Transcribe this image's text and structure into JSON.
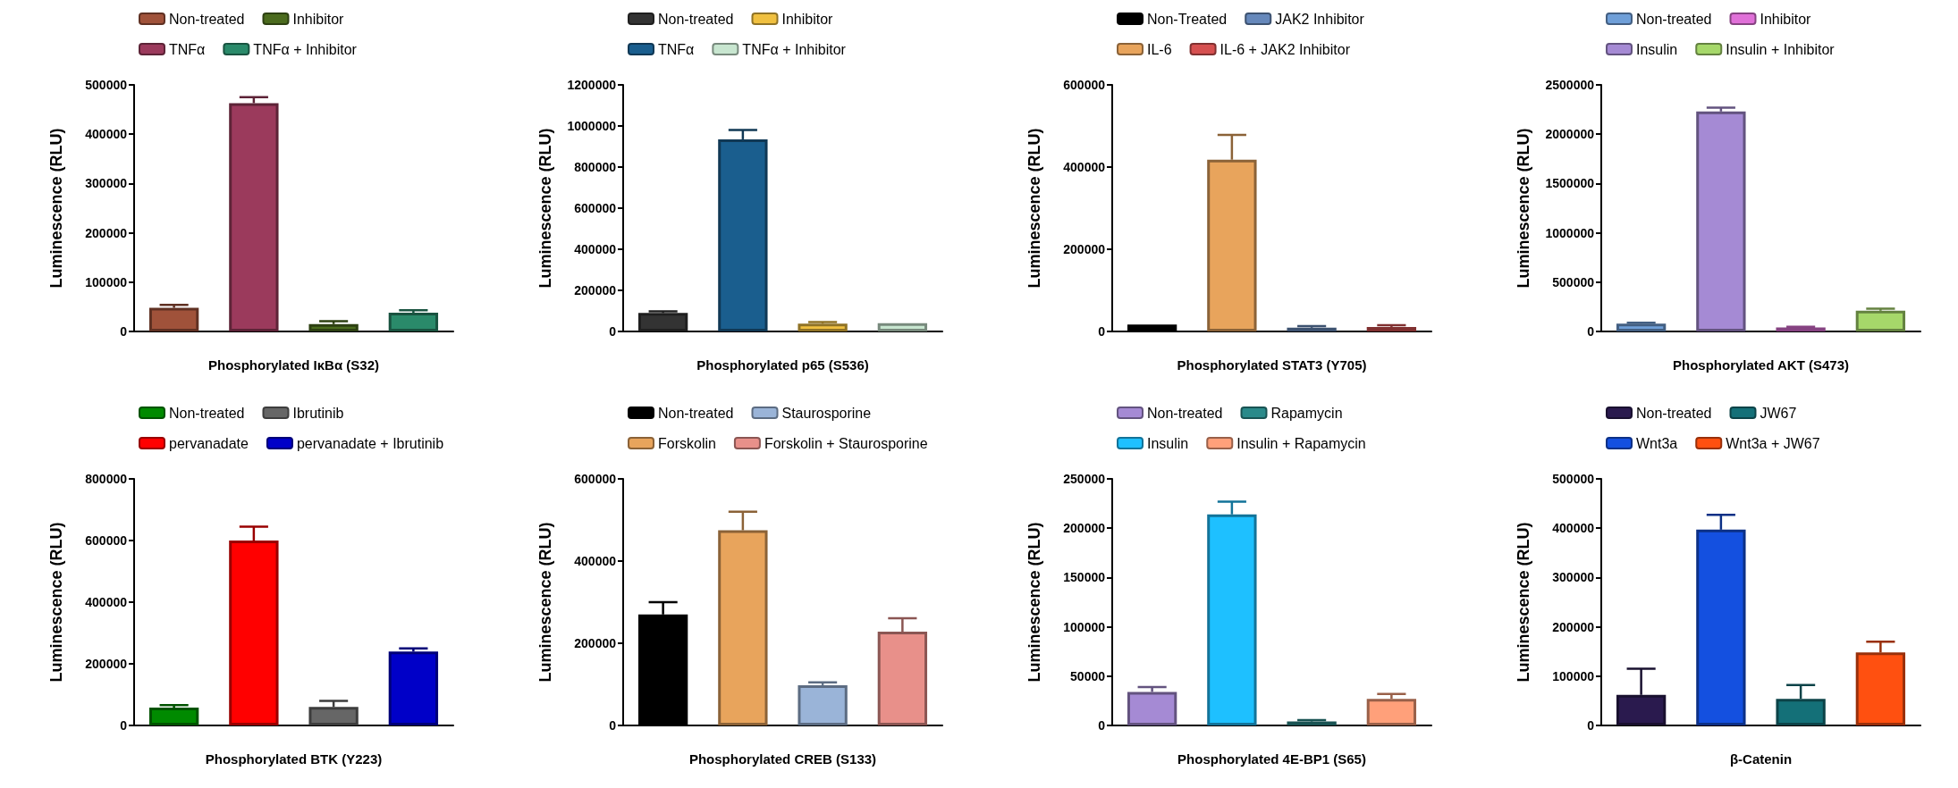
{
  "chart_data": [
    {
      "type": "bar",
      "xlabel": "Phosphorylated IκBα (S32)",
      "ylabel": "Luminescence (RLU)",
      "categories": [
        null,
        null,
        null,
        null
      ],
      "ylim": [
        0,
        500000
      ],
      "yticks": [
        0,
        100000,
        200000,
        300000,
        400000,
        500000
      ],
      "legend": "top",
      "grid": false,
      "series": [
        {
          "name": "Non-treated",
          "color": "#a0523a",
          "values": [
            48000,
            null,
            null,
            null
          ],
          "errors": [
            6000,
            null,
            null,
            null
          ]
        },
        {
          "name": "TNFα",
          "color": "#9b3a5c",
          "values": [
            null,
            463000,
            null,
            null
          ],
          "errors": [
            null,
            12000,
            null,
            null
          ]
        },
        {
          "name": "Inhibitor",
          "color": "#4b6b1e",
          "values": [
            null,
            null,
            15000,
            null
          ],
          "errors": [
            null,
            null,
            6000,
            null
          ]
        },
        {
          "name": "TNFα + Inhibitor",
          "color": "#2a8a6a",
          "values": [
            null,
            null,
            null,
            38000
          ],
          "errors": [
            null,
            null,
            null,
            5000
          ]
        }
      ]
    },
    {
      "type": "bar",
      "xlabel": "Phosphorylated p65 (S536)",
      "ylabel": "Luminescence (RLU)",
      "categories": [
        null,
        null,
        null,
        null
      ],
      "ylim": [
        0,
        1200000
      ],
      "yticks": [
        0,
        200000,
        400000,
        600000,
        800000,
        1000000,
        1200000
      ],
      "legend": "top",
      "grid": false,
      "series": [
        {
          "name": "Non-treated",
          "color": "#333333",
          "values": [
            90000,
            null,
            null,
            null
          ],
          "errors": [
            8000,
            null,
            null,
            null
          ]
        },
        {
          "name": "TNFα",
          "color": "#1a5e8e",
          "values": [
            null,
            935000,
            null,
            null
          ],
          "errors": [
            null,
            45000,
            null,
            null
          ]
        },
        {
          "name": "Inhibitor",
          "color": "#f0c040",
          "values": [
            null,
            null,
            38000,
            null
          ],
          "errors": [
            null,
            null,
            8000,
            null
          ]
        },
        {
          "name": "TNFα + Inhibitor",
          "color": "#c8e6d0",
          "values": [
            null,
            null,
            null,
            40000
          ]
        }
      ]
    },
    {
      "type": "bar",
      "xlabel": "Phosphorylated STAT3 (Y705)",
      "ylabel": "Luminescence (RLU)",
      "categories": [
        null,
        null,
        null,
        null
      ],
      "ylim": [
        0,
        600000
      ],
      "yticks": [
        0,
        200000,
        400000,
        600000
      ],
      "legend": "top",
      "grid": false,
      "series": [
        {
          "name": "Non-Treated",
          "color": "#000000",
          "values": [
            17000,
            null,
            null,
            null
          ]
        },
        {
          "name": "IL-6",
          "color": "#e8a45c",
          "values": [
            null,
            418000,
            null,
            null
          ],
          "errors": [
            null,
            60000,
            null,
            null
          ]
        },
        {
          "name": "JAK2 Inhibitor",
          "color": "#6688bb",
          "values": [
            null,
            null,
            9000,
            null
          ],
          "errors": [
            null,
            null,
            4000,
            null
          ]
        },
        {
          "name": "IL-6 + JAK2 Inhibitor",
          "color": "#d65050",
          "values": [
            null,
            null,
            null,
            11000
          ],
          "errors": [
            null,
            null,
            null,
            4000
          ]
        }
      ]
    },
    {
      "type": "bar",
      "xlabel": "Phosphorylated AKT (S473)",
      "ylabel": "Luminescence (RLU)",
      "categories": [
        null,
        null,
        null,
        null
      ],
      "ylim": [
        0,
        2500000
      ],
      "yticks": [
        0,
        500000,
        1000000,
        1500000,
        2000000,
        2500000
      ],
      "legend": "top",
      "grid": false,
      "series": [
        {
          "name": "Non-treated",
          "color": "#6f9fd8",
          "values": [
            80000,
            null,
            null,
            null
          ],
          "errors": [
            8000,
            null,
            null,
            null
          ]
        },
        {
          "name": "Insulin",
          "color": "#a58ad4",
          "values": [
            null,
            2230000,
            null,
            null
          ],
          "errors": [
            null,
            40000,
            null,
            null
          ]
        },
        {
          "name": "Inhibitor",
          "color": "#e070d8",
          "values": [
            null,
            null,
            40000,
            null
          ],
          "errors": [
            null,
            null,
            8000,
            null
          ]
        },
        {
          "name": "Insulin + Inhibitor",
          "color": "#a6d86a",
          "values": [
            null,
            null,
            null,
            210000
          ],
          "errors": [
            null,
            null,
            null,
            20000
          ]
        }
      ]
    },
    {
      "type": "bar",
      "xlabel": "Phosphorylated BTK (Y223)",
      "ylabel": "Luminescence (RLU)",
      "categories": [
        null,
        null,
        null,
        null
      ],
      "ylim": [
        0,
        800000
      ],
      "yticks": [
        0,
        200000,
        400000,
        600000,
        800000
      ],
      "legend": "top",
      "grid": false,
      "series": [
        {
          "name": "Non-treated",
          "color": "#008a00",
          "values": [
            58000,
            null,
            null,
            null
          ],
          "errors": [
            8000,
            null,
            null,
            null
          ]
        },
        {
          "name": "pervanadate",
          "color": "#ff0000",
          "values": [
            null,
            600000,
            null,
            null
          ],
          "errors": [
            null,
            45000,
            null,
            null
          ]
        },
        {
          "name": "Ibrutinib",
          "color": "#666666",
          "values": [
            null,
            null,
            60000,
            null
          ],
          "errors": [
            null,
            null,
            20000,
            null
          ]
        },
        {
          "name": "pervanadate + Ibrutinib",
          "color": "#0000c8",
          "values": [
            null,
            null,
            null,
            240000
          ],
          "errors": [
            null,
            null,
            null,
            10000
          ]
        }
      ]
    },
    {
      "type": "bar",
      "xlabel": "Phosphorylated CREB (S133)",
      "ylabel": "Luminescence (RLU)",
      "categories": [
        null,
        null,
        null,
        null
      ],
      "ylim": [
        0,
        600000
      ],
      "yticks": [
        0,
        200000,
        400000,
        600000
      ],
      "legend": "top",
      "grid": false,
      "series": [
        {
          "name": "Non-treated",
          "color": "#000000",
          "values": [
            270000,
            null,
            null,
            null
          ],
          "errors": [
            30000,
            null,
            null,
            null
          ]
        },
        {
          "name": "Forskolin",
          "color": "#e8a45c",
          "values": [
            null,
            475000,
            null,
            null
          ],
          "errors": [
            null,
            45000,
            null,
            null
          ]
        },
        {
          "name": "Staurosporine",
          "color": "#9ab4d8",
          "values": [
            null,
            null,
            98000,
            null
          ],
          "errors": [
            null,
            null,
            7000,
            null
          ]
        },
        {
          "name": "Forskolin + Staurosporine",
          "color": "#e8908a",
          "values": [
            null,
            null,
            null,
            228000
          ],
          "errors": [
            null,
            null,
            null,
            33000
          ]
        }
      ]
    },
    {
      "type": "bar",
      "xlabel": "Phosphorylated 4E-BP1 (S65)",
      "ylabel": "Luminescence (RLU)",
      "categories": [
        null,
        null,
        null,
        null
      ],
      "ylim": [
        0,
        250000
      ],
      "yticks": [
        0,
        50000,
        100000,
        150000,
        200000,
        250000
      ],
      "legend": "top",
      "grid": false,
      "series": [
        {
          "name": "Non-treated",
          "color": "#a58ad4",
          "values": [
            34000,
            null,
            null,
            null
          ],
          "errors": [
            5000,
            null,
            null,
            null
          ]
        },
        {
          "name": "Insulin",
          "color": "#1ec0ff",
          "values": [
            null,
            214000,
            null,
            null
          ],
          "errors": [
            null,
            13000,
            null,
            null
          ]
        },
        {
          "name": "Rapamycin",
          "color": "#2a8a8a",
          "values": [
            null,
            null,
            4000,
            null
          ],
          "errors": [
            null,
            null,
            1500,
            null
          ]
        },
        {
          "name": "Insulin + Rapamycin",
          "color": "#ffa07a",
          "values": [
            null,
            null,
            null,
            27000
          ],
          "errors": [
            null,
            null,
            null,
            5000
          ]
        }
      ]
    },
    {
      "type": "bar",
      "xlabel": "β-Catenin",
      "ylabel": "Luminescence (RLU)",
      "categories": [
        null,
        null,
        null,
        null
      ],
      "ylim": [
        0,
        500000
      ],
      "yticks": [
        0,
        100000,
        200000,
        300000,
        400000,
        500000
      ],
      "legend": "top",
      "grid": false,
      "series": [
        {
          "name": "Non-treated",
          "color": "#2a1a4e",
          "values": [
            62000,
            null,
            null,
            null
          ],
          "errors": [
            53000,
            null,
            null,
            null
          ]
        },
        {
          "name": "Wnt3a",
          "color": "#1450e0",
          "values": [
            null,
            397000,
            null,
            null
          ],
          "errors": [
            null,
            30000,
            null,
            null
          ]
        },
        {
          "name": "JW67",
          "color": "#147078",
          "values": [
            null,
            null,
            54000,
            null
          ],
          "errors": [
            null,
            null,
            28000,
            null
          ]
        },
        {
          "name": "Wnt3a + JW67",
          "color": "#ff5010",
          "values": [
            null,
            null,
            null,
            148000
          ],
          "errors": [
            null,
            null,
            null,
            22000
          ]
        }
      ]
    }
  ]
}
